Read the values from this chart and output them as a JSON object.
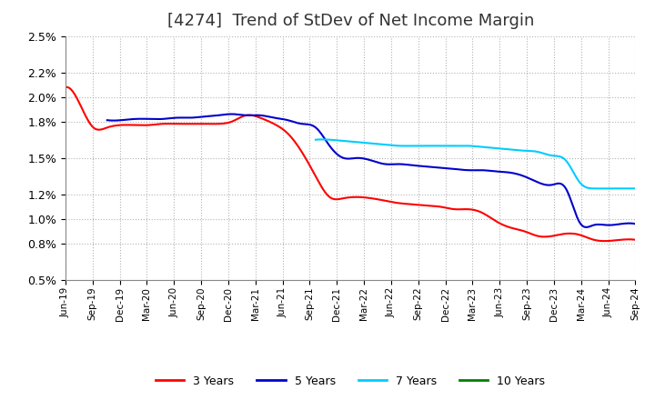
{
  "title": "[4274]  Trend of StDev of Net Income Margin",
  "title_fontsize": 13,
  "background_color": "#ffffff",
  "grid_color": "#aaaaaa",
  "series": {
    "3 Years": {
      "color": "#ff0000",
      "x": [
        0,
        1,
        2,
        3,
        4,
        5,
        6,
        7,
        8,
        9,
        10,
        11,
        12,
        13,
        14,
        15,
        16,
        17,
        18,
        19,
        20,
        21,
        22,
        23,
        24,
        25,
        26,
        27,
        28,
        29,
        30,
        31,
        32,
        33,
        34,
        35,
        36,
        37,
        38,
        39,
        40,
        41
      ],
      "y": [
        0.0208,
        0.0195,
        0.0175,
        0.0175,
        0.0177,
        0.0177,
        0.0177,
        0.0178,
        0.0178,
        0.0178,
        0.0178,
        0.0178,
        0.018,
        0.0185,
        0.0183,
        0.0178,
        0.017,
        0.0155,
        0.0135,
        0.0118,
        0.0117,
        0.0118,
        0.0117,
        0.0115,
        0.0113,
        0.0112,
        0.0111,
        0.011,
        0.0108,
        0.0108,
        0.0105,
        0.0098,
        0.0093,
        0.009,
        0.0086,
        0.0086,
        0.0088,
        0.0087,
        0.0083,
        0.0082,
        0.0083,
        0.0083
      ]
    },
    "5 Years": {
      "color": "#0000cc",
      "x": [
        3,
        4,
        5,
        6,
        7,
        8,
        9,
        10,
        11,
        12,
        13,
        14,
        15,
        16,
        17,
        18,
        19,
        20,
        21,
        22,
        23,
        24,
        25,
        26,
        27,
        28,
        29,
        30,
        31,
        32,
        33,
        34,
        35,
        36,
        37,
        38,
        39,
        40,
        41
      ],
      "y": [
        0.0181,
        0.0181,
        0.0182,
        0.0182,
        0.0182,
        0.0183,
        0.0183,
        0.0184,
        0.0185,
        0.0186,
        0.0185,
        0.0185,
        0.0183,
        0.0181,
        0.0178,
        0.0175,
        0.016,
        0.015,
        0.015,
        0.0148,
        0.0145,
        0.0145,
        0.0144,
        0.0143,
        0.0142,
        0.0141,
        0.014,
        0.014,
        0.0139,
        0.0138,
        0.0135,
        0.013,
        0.0128,
        0.0125,
        0.0097,
        0.0095,
        0.0095,
        0.0096,
        0.0096
      ]
    },
    "7 Years": {
      "color": "#00ccff",
      "x": [
        18,
        19,
        20,
        21,
        22,
        23,
        24,
        25,
        26,
        27,
        28,
        29,
        30,
        31,
        32,
        33,
        34,
        35,
        36,
        37,
        38,
        39,
        40,
        41
      ],
      "y": [
        0.0165,
        0.0165,
        0.0164,
        0.0163,
        0.0162,
        0.0161,
        0.016,
        0.016,
        0.016,
        0.016,
        0.016,
        0.016,
        0.0159,
        0.0158,
        0.0157,
        0.0156,
        0.0155,
        0.0152,
        0.0148,
        0.013,
        0.0125,
        0.0125,
        0.0125,
        0.0125
      ]
    },
    "10 Years": {
      "color": "#008000",
      "x": [],
      "y": []
    }
  },
  "x_labels": [
    "Jun-19",
    "Sep-19",
    "Dec-19",
    "Mar-20",
    "Jun-20",
    "Sep-20",
    "Dec-20",
    "Mar-21",
    "Jun-21",
    "Sep-21",
    "Dec-21",
    "Mar-22",
    "Jun-22",
    "Sep-22",
    "Dec-22",
    "Mar-23",
    "Jun-23",
    "Sep-23",
    "Dec-23",
    "Mar-24",
    "Jun-24",
    "Sep-24"
  ],
  "ytick_vals": [
    0.005,
    0.008,
    0.01,
    0.012,
    0.015,
    0.018,
    0.02,
    0.022,
    0.025
  ],
  "ylim_min": 0.005,
  "ylim_max": 0.025,
  "legend_labels": [
    "3 Years",
    "5 Years",
    "7 Years",
    "10 Years"
  ],
  "legend_colors": [
    "#ff0000",
    "#0000cc",
    "#00ccff",
    "#008000"
  ]
}
